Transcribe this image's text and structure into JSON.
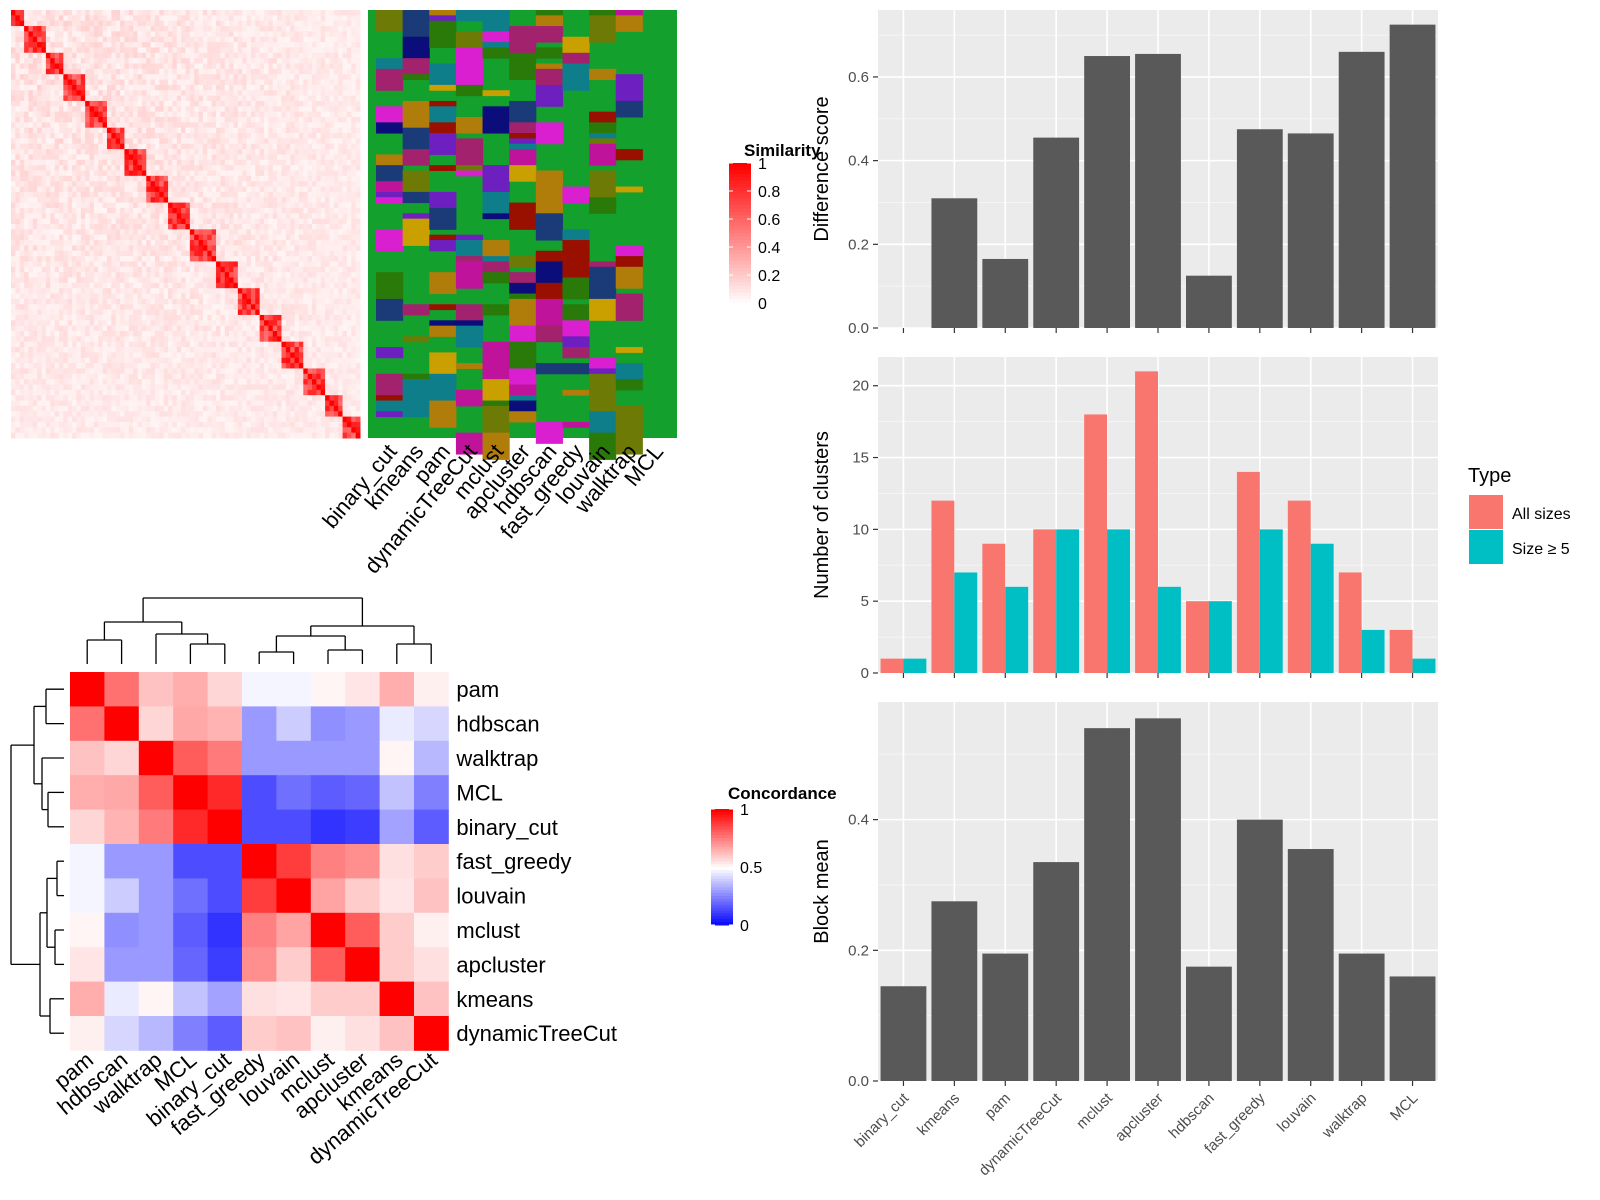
{
  "methods": [
    "binary_cut",
    "kmeans",
    "pam",
    "dynamicTreeCut",
    "mclust",
    "apcluster",
    "hdbscan",
    "fast_greedy",
    "louvain",
    "walktrap",
    "MCL"
  ],
  "similarity_heatmap": {
    "legend_title": "Similarity",
    "legend_ticks": [
      "1",
      "0.8",
      "0.6",
      "0.4",
      "0.2",
      "0"
    ],
    "n_terms": 80
  },
  "concordance_heatmap": {
    "legend_title": "Concordance",
    "legend_ticks": [
      "1",
      "0.5",
      "0"
    ],
    "order": [
      "pam",
      "hdbscan",
      "walktrap",
      "MCL",
      "binary_cut",
      "fast_greedy",
      "louvain",
      "mclust",
      "apcluster",
      "kmeans",
      "dynamicTreeCut"
    ],
    "matrix": [
      [
        1.0,
        0.78,
        0.62,
        0.66,
        0.58,
        0.48,
        0.48,
        0.52,
        0.55,
        0.66,
        0.53
      ],
      [
        0.78,
        1.0,
        0.58,
        0.67,
        0.65,
        0.3,
        0.4,
        0.28,
        0.3,
        0.46,
        0.42
      ],
      [
        0.62,
        0.58,
        1.0,
        0.82,
        0.76,
        0.3,
        0.3,
        0.3,
        0.3,
        0.52,
        0.36
      ],
      [
        0.66,
        0.67,
        0.82,
        1.0,
        0.92,
        0.15,
        0.22,
        0.18,
        0.2,
        0.38,
        0.25
      ],
      [
        0.58,
        0.65,
        0.76,
        0.92,
        1.0,
        0.15,
        0.15,
        0.1,
        0.12,
        0.32,
        0.18
      ],
      [
        0.48,
        0.3,
        0.3,
        0.15,
        0.15,
        1.0,
        0.88,
        0.75,
        0.72,
        0.56,
        0.6
      ],
      [
        0.48,
        0.4,
        0.3,
        0.22,
        0.15,
        0.88,
        1.0,
        0.68,
        0.6,
        0.55,
        0.62
      ],
      [
        0.52,
        0.28,
        0.3,
        0.18,
        0.1,
        0.75,
        0.68,
        1.0,
        0.82,
        0.6,
        0.53
      ],
      [
        0.55,
        0.3,
        0.3,
        0.2,
        0.12,
        0.72,
        0.6,
        0.82,
        1.0,
        0.6,
        0.56
      ],
      [
        0.66,
        0.46,
        0.52,
        0.38,
        0.32,
        0.56,
        0.55,
        0.6,
        0.6,
        1.0,
        0.62
      ],
      [
        0.53,
        0.42,
        0.36,
        0.25,
        0.18,
        0.6,
        0.62,
        0.53,
        0.56,
        0.62,
        1.0
      ]
    ]
  },
  "chart_data": [
    {
      "type": "bar",
      "categories": [
        "binary_cut",
        "kmeans",
        "pam",
        "dynamicTreeCut",
        "mclust",
        "apcluster",
        "hdbscan",
        "fast_greedy",
        "louvain",
        "walktrap",
        "MCL"
      ],
      "values": [
        0,
        0.31,
        0.165,
        0.455,
        0.65,
        0.655,
        0.125,
        0.475,
        0.465,
        0.66,
        0.725
      ],
      "title": "",
      "xlabel": "",
      "ylabel": "Difference score",
      "ylim": [
        0,
        0.76
      ],
      "yticks": [
        "0.0",
        "0.2",
        "0.4",
        "0.6"
      ],
      "grid": true,
      "bar_color": "#595959"
    },
    {
      "type": "bar",
      "categories": [
        "binary_cut",
        "kmeans",
        "pam",
        "dynamicTreeCut",
        "mclust",
        "apcluster",
        "hdbscan",
        "fast_greedy",
        "louvain",
        "walktrap",
        "MCL"
      ],
      "series": [
        {
          "name": "All sizes",
          "values": [
            1,
            12,
            9,
            10,
            18,
            21,
            5,
            14,
            12,
            7,
            3
          ],
          "color": "#F8766D"
        },
        {
          "name": "Size ≥ 5",
          "values": [
            1,
            7,
            6,
            10,
            10,
            6,
            5,
            10,
            9,
            3,
            1
          ],
          "color": "#00BFC4"
        }
      ],
      "title": "",
      "xlabel": "",
      "ylabel": "Number of clusters",
      "ylim": [
        0,
        22
      ],
      "yticks": [
        "0",
        "5",
        "10",
        "15",
        "20"
      ],
      "legend_title": "Type",
      "legend_position": "right",
      "grid": true
    },
    {
      "type": "bar",
      "categories": [
        "binary_cut",
        "kmeans",
        "pam",
        "dynamicTreeCut",
        "mclust",
        "apcluster",
        "hdbscan",
        "fast_greedy",
        "louvain",
        "walktrap",
        "MCL"
      ],
      "values": [
        0.145,
        0.275,
        0.195,
        0.335,
        0.54,
        0.555,
        0.175,
        0.4,
        0.355,
        0.195,
        0.16
      ],
      "title": "",
      "xlabel": "",
      "ylabel": "Block mean",
      "ylim": [
        0,
        0.58
      ],
      "yticks": [
        "0.0",
        "0.2",
        "0.4"
      ],
      "grid": true,
      "bar_color": "#595959"
    }
  ]
}
